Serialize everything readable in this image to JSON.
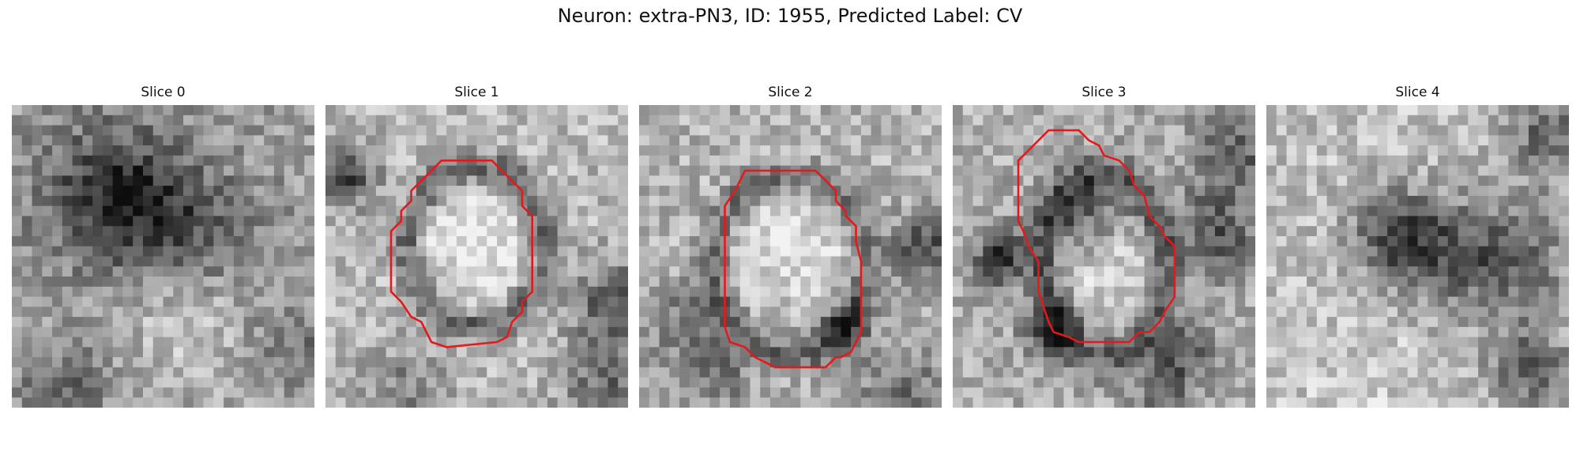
{
  "figure": {
    "title": "Neuron: extra-PN3, ID: 1955, Predicted Label: CV"
  },
  "panels": [
    {
      "title": "Slice 0"
    },
    {
      "title": "Slice 1"
    },
    {
      "title": "Slice 2"
    },
    {
      "title": "Slice 3"
    },
    {
      "title": "Slice 4"
    }
  ],
  "colors": {
    "contour": "#e31a1c",
    "background": "#ffffff"
  }
}
